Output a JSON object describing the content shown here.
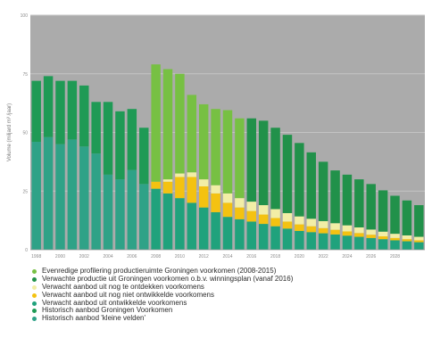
{
  "chart_data": {
    "type": "bar",
    "stacked": true,
    "title": "",
    "xlabel": "",
    "ylabel": "Volume (miljard m³ /jaar)",
    "ylim": [
      0,
      100
    ],
    "yticks": [
      0,
      25,
      50,
      75,
      100
    ],
    "grid": true,
    "legend_position": "bottom",
    "background_color": "#ababab",
    "gridline_color": "#c4c4c4",
    "x_tick_labels": [
      {
        "year": 1998,
        "label": "1998"
      },
      {
        "year": 2000,
        "label": "2000"
      },
      {
        "year": 2002,
        "label": "2002"
      },
      {
        "year": 2004,
        "label": "2004"
      },
      {
        "year": 2006,
        "label": "2006"
      },
      {
        "year": 2008,
        "label": "2008"
      },
      {
        "year": 2010,
        "label": "2010"
      },
      {
        "year": 2012,
        "label": "2012"
      },
      {
        "year": 2014,
        "label": "2014"
      },
      {
        "year": 2016,
        "label": "2016"
      },
      {
        "year": 2018,
        "label": "2018"
      },
      {
        "year": 2020,
        "label": "2020"
      },
      {
        "year": 2022,
        "label": "2022"
      },
      {
        "year": 2024,
        "label": "2024"
      },
      {
        "year": 2026,
        "label": "2026"
      },
      {
        "year": 2028,
        "label": "2028"
      }
    ],
    "x": [
      1998,
      1999,
      2000,
      2001,
      2002,
      2003,
      2004,
      2005,
      2006,
      2007,
      2008,
      2009,
      2010,
      2011,
      2012,
      2013,
      2014,
      2015,
      2016,
      2017,
      2018,
      2019,
      2020,
      2021,
      2022,
      2023,
      2024,
      2025,
      2026,
      2027,
      2028,
      2029,
      2030
    ],
    "series": [
      {
        "name": "Historisch aanbod 'kleine velden'",
        "color": "#2fa287",
        "values": [
          46,
          48,
          45,
          47,
          44,
          41,
          32,
          30,
          34,
          28,
          0,
          0,
          0,
          0,
          0,
          0,
          0,
          0,
          0,
          0,
          0,
          0,
          0,
          0,
          0,
          0,
          0,
          0,
          0,
          0,
          0,
          0,
          0
        ]
      },
      {
        "name": "Historisch aanbod Groningen Voorkomen",
        "color": "#1f9a55",
        "values": [
          26,
          26,
          27,
          25,
          26,
          22,
          31,
          29,
          26,
          24,
          0,
          0,
          0,
          0,
          0,
          0,
          0,
          0,
          0,
          0,
          0,
          0,
          0,
          0,
          0,
          0,
          0,
          0,
          0,
          0,
          0,
          0,
          0
        ]
      },
      {
        "name": "Verwacht aanbod uit ontwikkelde voorkomens",
        "color": "#20a27c",
        "values": [
          0,
          0,
          0,
          0,
          0,
          0,
          0,
          0,
          0,
          0,
          26,
          24,
          22,
          20,
          18,
          16,
          14,
          13,
          12,
          11,
          10,
          9,
          8,
          7.5,
          7,
          6.5,
          6,
          5.5,
          5,
          4.5,
          4,
          3.6,
          3.2
        ]
      },
      {
        "name": "Verwacht aanbod uit nog niet ontwikkelde voorkomens",
        "color": "#f4c211",
        "values": [
          0,
          0,
          0,
          0,
          0,
          0,
          0,
          0,
          0,
          0,
          3,
          5,
          9,
          11,
          9,
          8,
          6,
          5,
          4.5,
          4,
          3.5,
          3,
          2.8,
          2.5,
          2.2,
          2,
          1.8,
          1.6,
          1.4,
          1.2,
          1,
          0.9,
          0.8
        ]
      },
      {
        "name": "Verwacht aanbod uit nog te ontdekken voorkomens",
        "color": "#f2eea6",
        "values": [
          0,
          0,
          0,
          0,
          0,
          0,
          0,
          0,
          0,
          0,
          0,
          1,
          1.5,
          2,
          3,
          3.5,
          4,
          4,
          4,
          4,
          3.8,
          3.6,
          3.4,
          3.2,
          3,
          2.8,
          2.6,
          2.4,
          2.2,
          2,
          1.8,
          1.6,
          1.5
        ]
      },
      {
        "name": "Verwachte productie uit Groningen voorkomen o.b.v. winningsplan (vanaf 2016)",
        "color": "#21914a",
        "values": [
          0,
          0,
          0,
          0,
          0,
          0,
          0,
          0,
          0,
          0,
          0,
          0,
          0,
          0,
          0,
          0,
          0,
          0,
          35.5,
          36,
          34.7,
          33.4,
          31.3,
          28.3,
          25.3,
          22.5,
          21.6,
          20.5,
          19.4,
          17.6,
          16.2,
          14.9,
          13.5
        ]
      },
      {
        "name": "Evenredige profilering productieruimte Groningen voorkomen (2008-2015)",
        "color": "#77c043",
        "values": [
          0,
          0,
          0,
          0,
          0,
          0,
          0,
          0,
          0,
          0,
          50,
          47,
          42.5,
          33,
          32,
          32.5,
          35.5,
          34,
          0,
          0,
          0,
          0,
          0,
          0,
          0,
          0,
          0,
          0,
          0,
          0,
          0,
          0,
          0
        ]
      }
    ]
  },
  "legend_order": [
    "Evenredige profilering productieruimte Groningen voorkomen (2008-2015)",
    "Verwachte productie uit Groningen voorkomen o.b.v. winningsplan (vanaf 2016)",
    "Verwacht aanbod uit nog te ontdekken voorkomens",
    "Verwacht aanbod uit nog niet ontwikkelde voorkomens",
    "Verwacht aanbod uit ontwikkelde voorkomens",
    "Historisch aanbod Groningen Voorkomen",
    "Historisch aanbod 'kleine velden'"
  ],
  "legend_marker_colors": {
    "Evenredige profilering productieruimte Groningen voorkomen (2008-2015)": "#77c043",
    "Verwachte productie uit Groningen voorkomen o.b.v. winningsplan (vanaf 2016)": "#21914a",
    "Verwacht aanbod uit nog te ontdekken voorkomens": "#f2eea6",
    "Verwacht aanbod uit nog niet ontwikkelde voorkomens": "#f4c211",
    "Verwacht aanbod uit ontwikkelde voorkomens": "#20a27c",
    "Historisch aanbod Groningen Voorkomen": "#1f9a55",
    "Historisch aanbod 'kleine velden'": "#2fa287"
  }
}
